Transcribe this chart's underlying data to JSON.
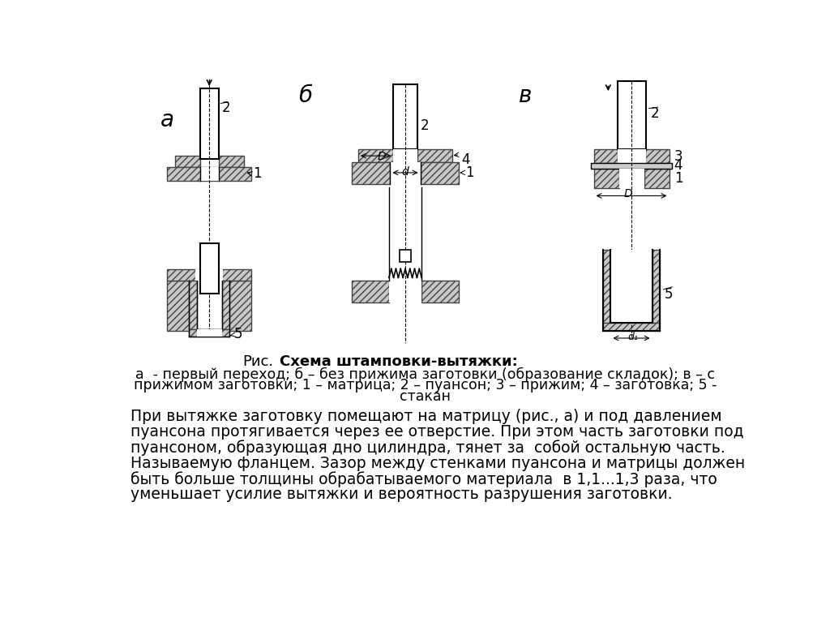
{
  "bg_color": "#ffffff",
  "title_normal": "Рис.",
  "title_bold": "Схема штамповки-вытяжки:",
  "caption_line1": "а  - первый переход; б – без прижима заготовки (образование складок); в – с",
  "caption_line2": "прижимом заготовки; 1 – матрица; 2 – пуансон; 3 – прижим; 4 – заготовка; 5 -",
  "caption_line3": "стакан",
  "body_line1": "При вытяжке заготовку помещают на матрицу (рис., а) и под давлением",
  "body_line2": "пуансона протягивается через ее отверстие. При этом часть заготовки под",
  "body_line3": "пуансоном, образующая дно цилиндра, тянет за  собой остальную часть.",
  "body_line4": "Называемую фланцем. Зазор между стенками пуансона и матрицы должен",
  "body_line5": "быть больше толщины обрабатываемого материала  в 1,1...1,3 раза, что",
  "body_line6": "уменьшает усилие вытяжки и вероятность разрушения заготовки.",
  "label_a": "а",
  "label_b": "б",
  "label_v": "в",
  "hatch_color": "#444444",
  "hatch_bg": "#c8c8c8",
  "white": "#ffffff",
  "black": "#000000"
}
